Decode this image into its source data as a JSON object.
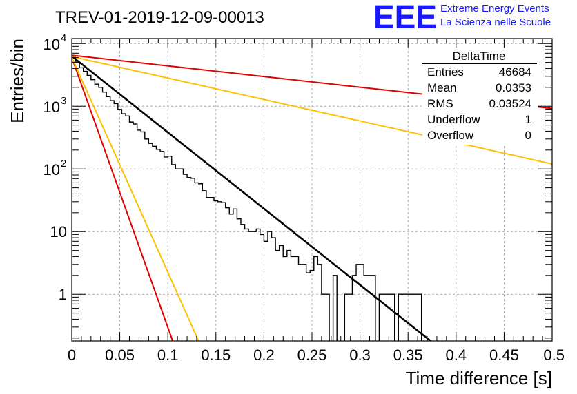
{
  "header": {
    "run_title": "TREV-01-2019-12-09-00013",
    "logo_text": "EEE",
    "logo_line1": "Extreme Energy Events",
    "logo_line2": "La Scienza nelle Scuole"
  },
  "stats_box": {
    "title": "DeltaTime",
    "rows": [
      {
        "label": "Entries",
        "value": "46684"
      },
      {
        "label": "Mean",
        "value": "0.0353"
      },
      {
        "label": "RMS",
        "value": "0.03524"
      },
      {
        "label": "Underflow",
        "value": "1"
      },
      {
        "label": "Overflow",
        "value": "0"
      }
    ]
  },
  "colors": {
    "histogram": "#000000",
    "fit": "#000000",
    "red_line": "#e00000",
    "orange_line": "#ffc000",
    "grid": "#999999",
    "logo_blue": "#1818ff"
  },
  "chart_data": {
    "type": "line",
    "title": "TREV-01-2019-12-09-00013",
    "xlabel": "Time difference [s]",
    "ylabel": "Entries/bin",
    "xlim": [
      0,
      0.5
    ],
    "ylim": [
      0.18,
      12000
    ],
    "yscale": "log",
    "grid": true,
    "x_ticks": [
      0,
      0.05,
      0.1,
      0.15,
      0.2,
      0.25,
      0.3,
      0.35,
      0.4,
      0.45,
      0.5
    ],
    "x_tick_labels": [
      "0",
      "0.05",
      "0.1",
      "0.15",
      "0.2",
      "0.25",
      "0.3",
      "0.35",
      "0.4",
      "0.45",
      "0.5"
    ],
    "y_ticks": [
      1,
      10,
      100,
      1000,
      10000
    ],
    "y_tick_labels": [
      "1",
      "10",
      "10^2",
      "10^3",
      "10^4"
    ],
    "histogram": {
      "name": "DeltaTime",
      "bin_width": 0.004,
      "x_start": 0,
      "values": [
        6000,
        5200,
        4100,
        3600,
        3100,
        2650,
        2250,
        2000,
        1680,
        1420,
        1230,
        1100,
        890,
        760,
        700,
        560,
        520,
        415,
        390,
        300,
        255,
        230,
        205,
        190,
        155,
        160,
        117,
        100,
        100,
        82,
        73,
        71,
        60,
        58,
        45,
        35,
        35,
        31,
        30,
        29,
        24,
        19,
        23,
        16,
        13,
        11,
        10,
        10,
        11,
        9,
        7,
        10,
        8,
        5,
        6,
        4,
        5,
        4,
        4,
        3,
        3,
        2.2,
        2.4,
        4,
        3,
        1,
        1,
        0,
        2,
        0,
        0,
        1,
        1,
        2,
        3,
        3,
        2,
        2,
        2,
        0,
        1,
        1,
        1,
        1,
        0,
        1,
        1,
        1,
        1,
        1,
        1,
        0,
        0,
        0,
        0,
        0,
        0,
        0,
        0,
        0
      ]
    },
    "series": [
      {
        "kind": "fit",
        "x": [
          0,
          0.38
        ],
        "y": [
          6300,
          0.15
        ]
      },
      {
        "kind": "red-shallow",
        "x": [
          0,
          0.5
        ],
        "y": [
          6500,
          920
        ]
      },
      {
        "kind": "orange-shallow",
        "x": [
          0,
          0.5
        ],
        "y": [
          6200,
          120
        ]
      },
      {
        "kind": "red-steep",
        "x": [
          0,
          0.105
        ],
        "y": [
          6000,
          0.18
        ]
      },
      {
        "kind": "orange-steep",
        "x": [
          0,
          0.132
        ],
        "y": [
          6000,
          0.18
        ]
      }
    ]
  }
}
